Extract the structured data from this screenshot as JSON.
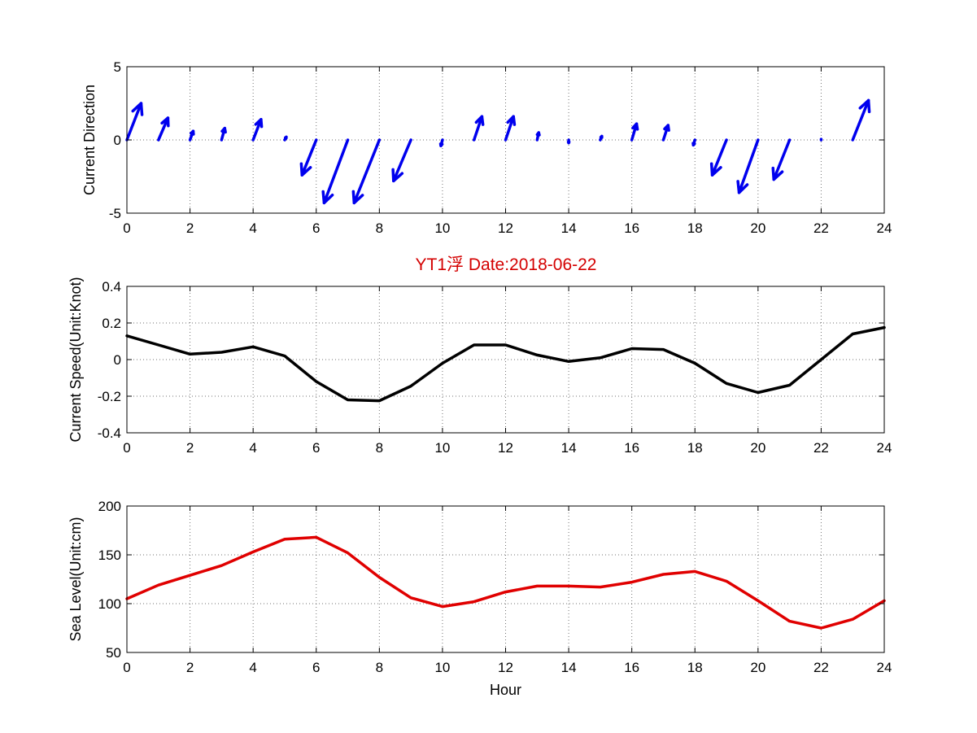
{
  "figure": {
    "title": "YT1浮    Date:2018-06-22",
    "title_color": "#d40000"
  },
  "chart_data": [
    {
      "type": "quiver",
      "xlabel": "",
      "ylabel": "Current Direction",
      "xlim": [
        0,
        24
      ],
      "ylim": [
        -5,
        5
      ],
      "xticks": [
        0,
        2,
        4,
        6,
        8,
        10,
        12,
        14,
        16,
        18,
        20,
        22,
        24
      ],
      "yticks": [
        -5,
        0,
        5
      ],
      "color": "#0000ee",
      "grid": true,
      "vectors": [
        {
          "x": 0,
          "u": 0.45,
          "v": 2.5
        },
        {
          "x": 1,
          "u": 0.3,
          "v": 1.5
        },
        {
          "x": 2,
          "u": 0.1,
          "v": 0.6
        },
        {
          "x": 3,
          "u": 0.1,
          "v": 0.8
        },
        {
          "x": 4,
          "u": 0.25,
          "v": 1.4
        },
        {
          "x": 5,
          "u": 0.05,
          "v": 0.2
        },
        {
          "x": 6,
          "u": -0.45,
          "v": -2.4
        },
        {
          "x": 7,
          "u": -0.75,
          "v": -4.3
        },
        {
          "x": 8,
          "u": -0.8,
          "v": -4.3
        },
        {
          "x": 9,
          "u": -0.55,
          "v": -2.8
        },
        {
          "x": 10,
          "u": -0.05,
          "v": -0.4
        },
        {
          "x": 11,
          "u": 0.25,
          "v": 1.6
        },
        {
          "x": 12,
          "u": 0.25,
          "v": 1.6
        },
        {
          "x": 13,
          "u": 0.05,
          "v": 0.5
        },
        {
          "x": 14,
          "u": 0.0,
          "v": -0.2
        },
        {
          "x": 15,
          "u": 0.05,
          "v": 0.25
        },
        {
          "x": 16,
          "u": 0.15,
          "v": 1.1
        },
        {
          "x": 17,
          "u": 0.15,
          "v": 1.0
        },
        {
          "x": 18,
          "u": -0.05,
          "v": -0.35
        },
        {
          "x": 19,
          "u": -0.45,
          "v": -2.4
        },
        {
          "x": 20,
          "u": -0.6,
          "v": -3.6
        },
        {
          "x": 21,
          "u": -0.5,
          "v": -2.7
        },
        {
          "x": 22,
          "u": 0.0,
          "v": 0.05
        },
        {
          "x": 23,
          "u": 0.5,
          "v": 2.7
        }
      ]
    },
    {
      "type": "line",
      "xlabel": "",
      "ylabel": "Current Speed(Unit:Knot)",
      "xlim": [
        0,
        24
      ],
      "ylim": [
        -0.4,
        0.4
      ],
      "xticks": [
        0,
        2,
        4,
        6,
        8,
        10,
        12,
        14,
        16,
        18,
        20,
        22,
        24
      ],
      "yticks": [
        -0.4,
        -0.2,
        0,
        0.2,
        0.4
      ],
      "color": "#000000",
      "grid": true,
      "x": [
        0,
        1,
        2,
        3,
        4,
        5,
        6,
        7,
        8,
        9,
        10,
        11,
        12,
        13,
        14,
        15,
        16,
        17,
        18,
        19,
        20,
        21,
        22,
        23,
        24
      ],
      "y": [
        0.13,
        0.08,
        0.03,
        0.04,
        0.07,
        0.02,
        -0.12,
        -0.22,
        -0.225,
        -0.145,
        -0.02,
        0.08,
        0.08,
        0.025,
        -0.01,
        0.01,
        0.06,
        0.055,
        -0.02,
        -0.13,
        -0.18,
        -0.14,
        0.0,
        0.14,
        0.175
      ]
    },
    {
      "type": "line",
      "xlabel": "Hour",
      "ylabel": "Sea Level(Unit:cm)",
      "xlim": [
        0,
        24
      ],
      "ylim": [
        50,
        200
      ],
      "xticks": [
        0,
        2,
        4,
        6,
        8,
        10,
        12,
        14,
        16,
        18,
        20,
        22,
        24
      ],
      "yticks": [
        50,
        100,
        150,
        200
      ],
      "color": "#e00000",
      "grid": true,
      "x": [
        0,
        1,
        2,
        3,
        4,
        5,
        6,
        7,
        8,
        9,
        10,
        11,
        12,
        13,
        14,
        15,
        16,
        17,
        18,
        19,
        20,
        21,
        22,
        23,
        24
      ],
      "y": [
        105,
        119,
        129,
        139,
        153,
        166,
        168,
        152,
        127,
        106,
        97,
        102,
        112,
        118,
        118,
        117,
        122,
        130,
        133,
        123,
        103,
        82,
        75,
        84,
        103
      ]
    }
  ]
}
